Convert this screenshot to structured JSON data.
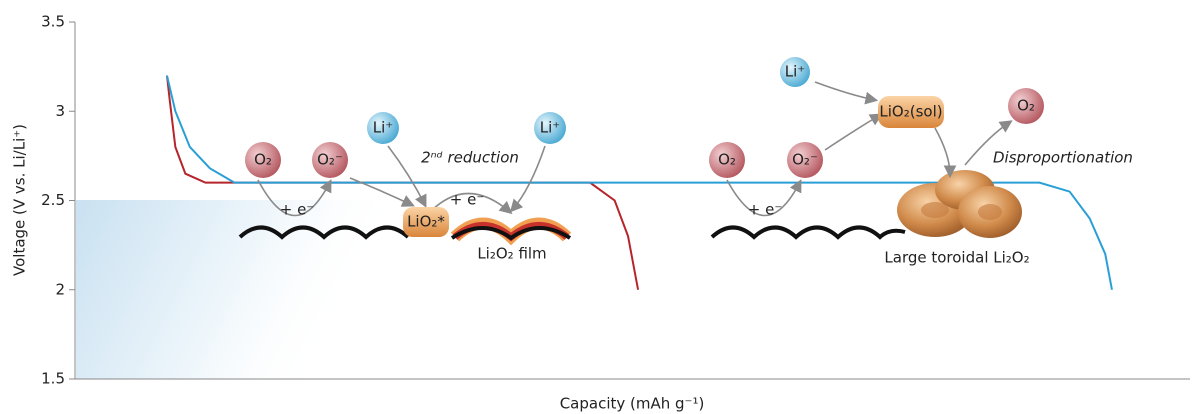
{
  "chart_data": {
    "type": "line",
    "y_label": "Voltage (V vs. Li/Li⁺)",
    "x_label": "Capacity (mAh g⁻¹)",
    "ylim": [
      1.5,
      3.5
    ],
    "yticks": [
      1.5,
      2,
      2.5,
      3,
      3.5
    ],
    "xlim": [
      0,
      100
    ],
    "series": [
      {
        "color": "#b5252b",
        "x": [
          8.25,
          8.5,
          9.0,
          9.9,
          11.7,
          46.2,
          48.4,
          49.6,
          50.5
        ],
        "values": [
          3.2,
          3.06,
          2.8,
          2.65,
          2.6,
          2.6,
          2.5,
          2.3,
          2.0
        ]
      },
      {
        "color": "#2a9fd6",
        "x": [
          8.25,
          9.0,
          10.3,
          12.1,
          14.3,
          86.5,
          89.2,
          91.0,
          92.4,
          93.0
        ],
        "values": [
          3.2,
          3.0,
          2.8,
          2.68,
          2.6,
          2.6,
          2.55,
          2.4,
          2.2,
          2.0
        ]
      }
    ],
    "annotations": [
      "O₂",
      "O₂⁻",
      "Li⁺",
      "2ⁿᵈ reduction",
      "Li⁺",
      "+ e⁻",
      "+ e⁻",
      "LiO₂*",
      "Li₂O₂ film",
      "O₂",
      "O₂⁻",
      "Li⁺",
      "LiO₂(sol)",
      "O₂",
      "Disproportionation",
      "+ e⁻",
      "Large toroidal Li₂O₂"
    ]
  }
}
